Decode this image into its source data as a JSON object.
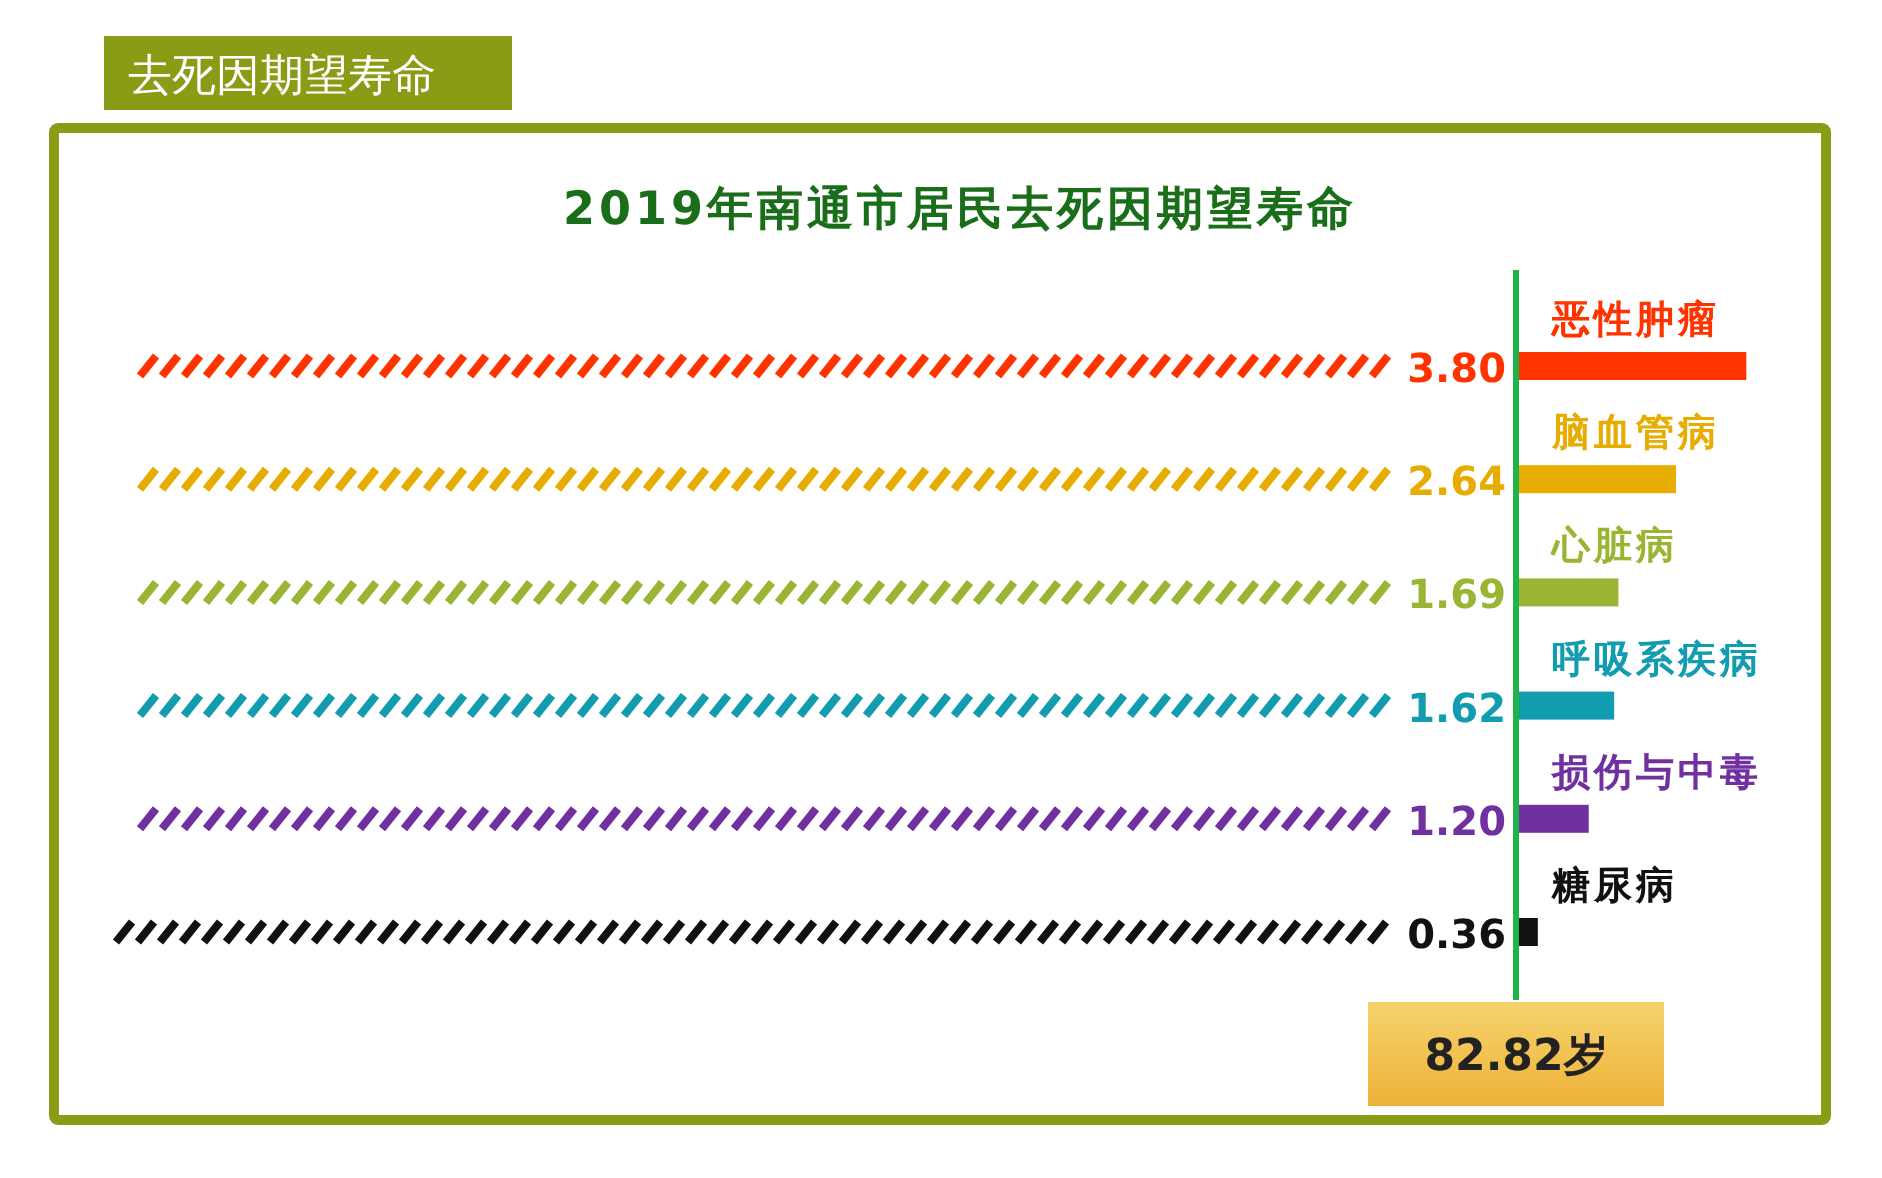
{
  "chart_data": {
    "type": "bar",
    "orientation": "horizontal",
    "subtitle": "去死因期望寿命",
    "title": "2019年南通市居民去死因期望寿命",
    "categories": [
      "恶性肿瘤",
      "脑血管病",
      "心脏病",
      "呼吸系疾病",
      "损伤与中毒",
      "糖尿病"
    ],
    "values": [
      3.8,
      2.64,
      1.69,
      1.62,
      1.2,
      0.36
    ],
    "colors": [
      "#ff3300",
      "#e6ad00",
      "#9ab534",
      "#129cb0",
      "#7030a0",
      "#111111"
    ],
    "value_labels": [
      "3.80",
      "2.64",
      "1.69",
      "1.62",
      "1.20",
      "0.36"
    ],
    "annotations": [
      "82.82岁"
    ]
  }
}
